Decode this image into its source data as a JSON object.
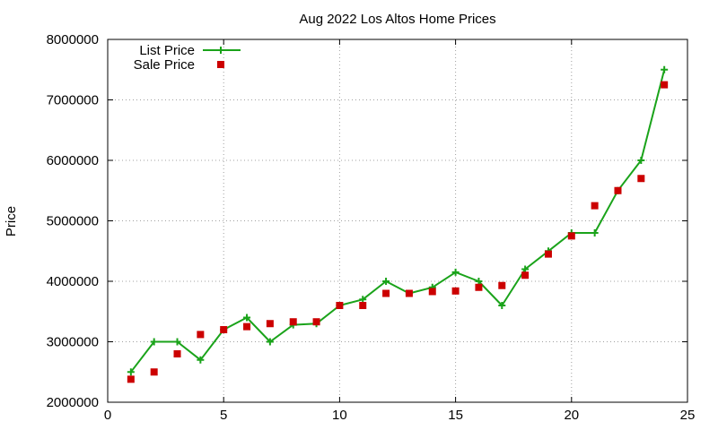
{
  "chart_data": {
    "type": "line",
    "title": "Aug 2022 Los Altos Home Prices",
    "xlabel": "",
    "ylabel": "Price",
    "xlim": [
      0,
      25
    ],
    "ylim": [
      2000000,
      8000000
    ],
    "xticks": [
      0,
      5,
      10,
      15,
      20,
      25
    ],
    "yticks": [
      2000000,
      3000000,
      4000000,
      5000000,
      6000000,
      7000000,
      8000000
    ],
    "xtick_labels": [
      "0",
      "5",
      "10",
      "15",
      "20",
      "25"
    ],
    "ytick_labels": [
      "2000000",
      "3000000",
      "4000000",
      "5000000",
      "6000000",
      "7000000",
      "8000000"
    ],
    "grid": true,
    "legend_position": "top-left",
    "x": [
      1,
      2,
      3,
      4,
      5,
      6,
      7,
      8,
      9,
      10,
      11,
      12,
      13,
      14,
      15,
      16,
      17,
      18,
      19,
      20,
      21,
      22,
      23,
      24
    ],
    "series": [
      {
        "name": "List Price",
        "style": "line-points",
        "marker": "plus",
        "color": "#1aa31a",
        "values": [
          2500000,
          3000000,
          3000000,
          2700000,
          3200000,
          3400000,
          3000000,
          3280000,
          3300000,
          3600000,
          3700000,
          4000000,
          3800000,
          3900000,
          4150000,
          4000000,
          3600000,
          4200000,
          4500000,
          4800000,
          4800000,
          5500000,
          6000000,
          7500000
        ]
      },
      {
        "name": "Sale Price",
        "style": "points",
        "marker": "square",
        "color": "#cc0000",
        "values": [
          2380000,
          2500000,
          2800000,
          3120000,
          3200000,
          3250000,
          3300000,
          3330000,
          3330000,
          3600000,
          3600000,
          3800000,
          3800000,
          3830000,
          3840000,
          3900000,
          3930000,
          4100000,
          4450000,
          4750000,
          5250000,
          5500000,
          5700000,
          7250000
        ]
      }
    ]
  }
}
